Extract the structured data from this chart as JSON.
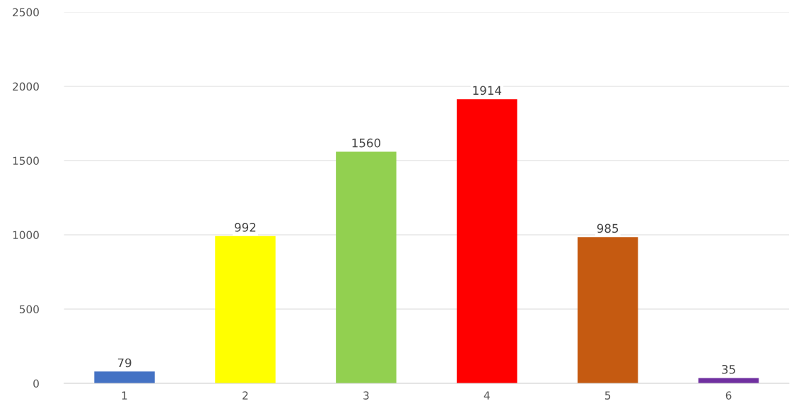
{
  "chart_data": {
    "type": "bar",
    "categories": [
      "1",
      "2",
      "3",
      "4",
      "5",
      "6"
    ],
    "values": [
      79,
      992,
      1560,
      1914,
      985,
      35
    ],
    "colors": [
      "#4472c4",
      "#ffff00",
      "#92d050",
      "#ff0000",
      "#c55a11",
      "#7030a0"
    ],
    "ylim": [
      0,
      2500
    ],
    "yticks": [
      0,
      500,
      1000,
      1500,
      2000,
      2500
    ],
    "grid": "y",
    "data_labels": true
  }
}
